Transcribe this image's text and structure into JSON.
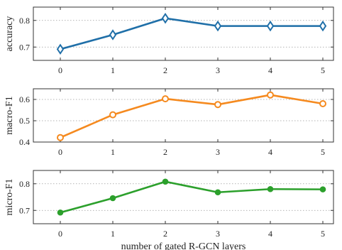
{
  "chart_data": [
    {
      "type": "line",
      "x": [
        0,
        1,
        2,
        3,
        4,
        5
      ],
      "values": [
        0.692,
        0.746,
        0.808,
        0.779,
        0.779,
        0.779
      ],
      "ylabel": "accuracy",
      "ylim": [
        0.65,
        0.85
      ],
      "yticks": [
        0.7,
        0.8
      ],
      "ytick_labels": [
        "0.7",
        "0.8"
      ],
      "xtick_labels": [
        "0",
        "1",
        "2",
        "3",
        "4",
        "5"
      ],
      "color": "#1f6fa8",
      "marker": "diamond",
      "grid": "dotted-horizontal"
    },
    {
      "type": "line",
      "x": [
        0,
        1,
        2,
        3,
        4,
        5
      ],
      "values": [
        0.421,
        0.528,
        0.603,
        0.576,
        0.621,
        0.58
      ],
      "ylabel": "macro-F1",
      "ylim": [
        0.4,
        0.65
      ],
      "yticks": [
        0.4,
        0.5,
        0.6
      ],
      "ytick_labels": [
        "0.4",
        "0.5",
        "0.6"
      ],
      "xtick_labels": [
        "0",
        "1",
        "2",
        "3",
        "4",
        "5"
      ],
      "color": "#f58a1f",
      "marker": "open-circle",
      "grid": "dotted-horizontal"
    },
    {
      "type": "line",
      "x": [
        0,
        1,
        2,
        3,
        4,
        5
      ],
      "values": [
        0.692,
        0.746,
        0.808,
        0.768,
        0.78,
        0.779
      ],
      "ylabel": "micro-F1",
      "ylim": [
        0.65,
        0.85
      ],
      "yticks": [
        0.7,
        0.8
      ],
      "ytick_labels": [
        "0.7",
        "0.8"
      ],
      "xtick_labels": [
        "0",
        "1",
        "2",
        "3",
        "4",
        "5"
      ],
      "xlabel": "number of gated R-GCN layers",
      "color": "#2ca02c",
      "marker": "filled-circle",
      "grid": "dotted-horizontal"
    }
  ]
}
